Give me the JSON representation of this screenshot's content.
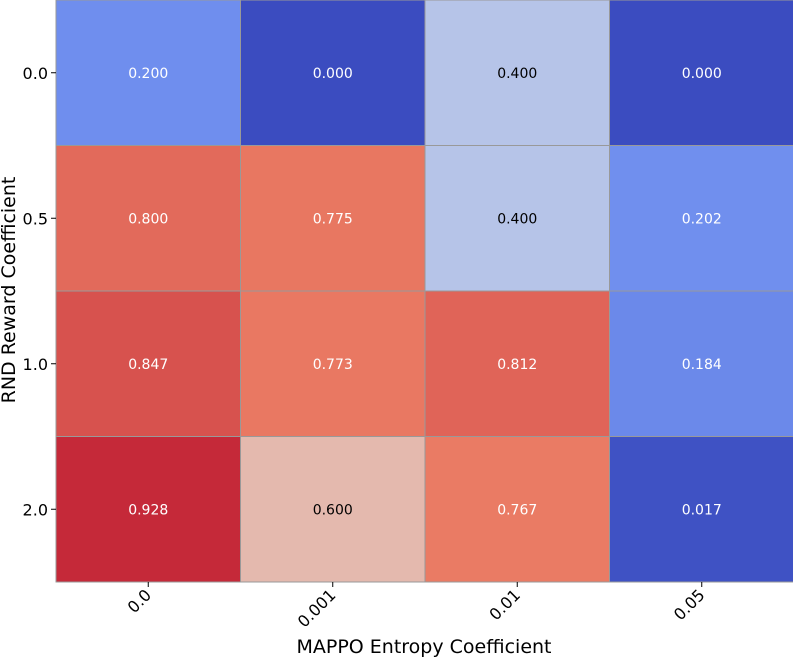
{
  "chart_data": {
    "type": "heatmap",
    "title": "",
    "xlabel": "MAPPO Entropy Coefficient",
    "ylabel": "RND Reward Coefficient",
    "x_categories": [
      "0.0",
      "0.001",
      "0.01",
      "0.05"
    ],
    "y_categories": [
      "0.0",
      "0.5",
      "1.0",
      "2.0"
    ],
    "values": [
      [
        0.2,
        0.0,
        0.4,
        0.0
      ],
      [
        0.8,
        0.775,
        0.4,
        0.202
      ],
      [
        0.847,
        0.773,
        0.812,
        0.184
      ],
      [
        0.928,
        0.6,
        0.767,
        0.017
      ]
    ],
    "value_labels": [
      [
        "0.200",
        "0.000",
        "0.400",
        "0.000"
      ],
      [
        "0.800",
        "0.775",
        "0.400",
        "0.202"
      ],
      [
        "0.847",
        "0.773",
        "0.812",
        "0.184"
      ],
      [
        "0.928",
        "0.600",
        "0.767",
        "0.017"
      ]
    ],
    "colormap": "coolwarm",
    "color_range": [
      0,
      1
    ],
    "colorbar": false,
    "grid": false
  }
}
